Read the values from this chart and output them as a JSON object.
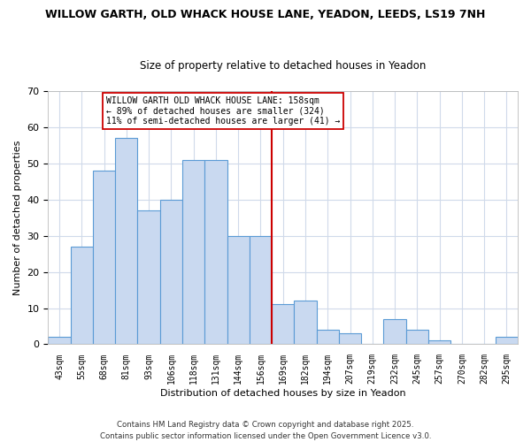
{
  "title": "WILLOW GARTH, OLD WHACK HOUSE LANE, YEADON, LEEDS, LS19 7NH",
  "subtitle": "Size of property relative to detached houses in Yeadon",
  "xlabel": "Distribution of detached houses by size in Yeadon",
  "ylabel": "Number of detached properties",
  "bar_labels": [
    "43sqm",
    "55sqm",
    "68sqm",
    "81sqm",
    "93sqm",
    "106sqm",
    "118sqm",
    "131sqm",
    "144sqm",
    "156sqm",
    "169sqm",
    "182sqm",
    "194sqm",
    "207sqm",
    "219sqm",
    "232sqm",
    "245sqm",
    "257sqm",
    "270sqm",
    "282sqm",
    "295sqm"
  ],
  "bar_heights": [
    2,
    27,
    48,
    57,
    37,
    40,
    51,
    51,
    30,
    30,
    11,
    12,
    4,
    3,
    0,
    7,
    4,
    1,
    0,
    0,
    2
  ],
  "bar_color": "#c9d9f0",
  "bar_edge_color": "#5b9bd5",
  "vline_color": "#cc0000",
  "ylim": [
    0,
    70
  ],
  "yticks": [
    0,
    10,
    20,
    30,
    40,
    50,
    60,
    70
  ],
  "annotation_line1": "WILLOW GARTH OLD WHACK HOUSE LANE: 158sqm",
  "annotation_line2": "← 89% of detached houses are smaller (324)",
  "annotation_line3": "11% of semi-detached houses are larger (41) →",
  "footer1": "Contains HM Land Registry data © Crown copyright and database right 2025.",
  "footer2": "Contains public sector information licensed under the Open Government Licence v3.0.",
  "background_color": "#ffffff",
  "grid_color": "#d0daea"
}
